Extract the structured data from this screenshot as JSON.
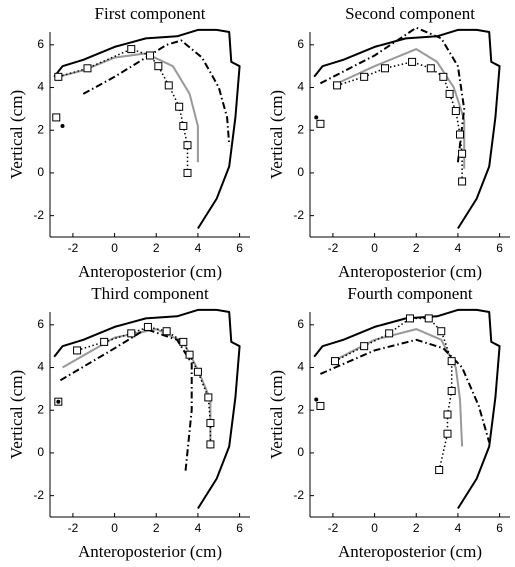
{
  "chart_data": [
    {
      "type": "line",
      "title": "First component",
      "xlabel": "Anteroposterior (cm)",
      "ylabel": "Vertical (cm)",
      "xlim": [
        -3.1,
        6.5
      ],
      "ylim": [
        -3,
        6.6
      ],
      "xticks": [
        -2,
        0,
        2,
        4,
        6
      ],
      "yticks": [
        -2,
        0,
        2,
        4,
        6
      ],
      "series": [
        {
          "color": "#000000",
          "line_style": "solid",
          "marker": "none",
          "x": [
            -2.9,
            -2.5,
            -1.5,
            0,
            1.5,
            3,
            4,
            4.9,
            5.5,
            5.6,
            6,
            5.8,
            5.5,
            4.9,
            4
          ],
          "y": [
            4.5,
            5.0,
            5.3,
            5.9,
            6.3,
            6.4,
            6.7,
            6.7,
            6.6,
            5.2,
            5.0,
            2.6,
            0.3,
            -1.2,
            -2.6
          ]
        },
        {
          "color": "#999999",
          "line_style": "solid",
          "marker": "none",
          "x": [
            -2.7,
            -1.5,
            0,
            1.5,
            2.8,
            3.6,
            4,
            4
          ],
          "y": [
            4.5,
            4.8,
            5.4,
            5.6,
            5.0,
            3.7,
            2.2,
            0.5
          ]
        },
        {
          "color": "#000000",
          "line_style": "dashdot",
          "marker": "none",
          "x": [
            -1.5,
            0,
            1.5,
            2.5,
            3.2,
            4.2,
            5,
            5.4,
            5.5
          ],
          "y": [
            3.7,
            4.5,
            5.4,
            6.0,
            6.2,
            5.4,
            4,
            2.6,
            1.3
          ]
        },
        {
          "color": "#000000",
          "line_style": "dotted",
          "marker": "square",
          "x": [
            -2.7,
            -1.3,
            0.8,
            1.7,
            2.1,
            2.6,
            3.1,
            3.3,
            3.5,
            3.5
          ],
          "y": [
            4.5,
            4.9,
            5.8,
            5.5,
            5.0,
            4.1,
            3.1,
            2.2,
            1.3,
            0.0
          ]
        },
        {
          "color": "#000000",
          "line_style": "none",
          "marker": "square",
          "x": [
            -2.8
          ],
          "y": [
            2.6
          ]
        },
        {
          "color": "#000000",
          "line_style": "none",
          "marker": "dot",
          "x": [
            -2.5
          ],
          "y": [
            2.2
          ]
        }
      ]
    },
    {
      "type": "line",
      "title": "Second component",
      "xlabel": "Anteroposterior (cm)",
      "ylabel": "Vertical (cm)",
      "xlim": [
        -3.1,
        6.5
      ],
      "ylim": [
        -3,
        6.6
      ],
      "xticks": [
        -2,
        0,
        2,
        4,
        6
      ],
      "yticks": [
        -2,
        0,
        2,
        4,
        6
      ],
      "series": [
        {
          "color": "#000000",
          "line_style": "solid",
          "marker": "none",
          "x": [
            -2.9,
            -2.5,
            -1.5,
            0,
            1.5,
            3,
            4,
            4.9,
            5.5,
            5.6,
            6,
            5.8,
            5.5,
            4.9,
            4
          ],
          "y": [
            4.5,
            5.0,
            5.3,
            5.9,
            6.3,
            6.4,
            6.7,
            6.7,
            6.6,
            5.2,
            5.0,
            2.6,
            0.3,
            -1.2,
            -2.6
          ]
        },
        {
          "color": "#999999",
          "line_style": "solid",
          "marker": "none",
          "x": [
            -2,
            0,
            2,
            3,
            3.8,
            4.3,
            4.3
          ],
          "y": [
            4.1,
            5,
            5.8,
            5.2,
            4,
            2.5,
            0.2
          ]
        },
        {
          "color": "#000000",
          "line_style": "dashdot",
          "marker": "none",
          "x": [
            -2.6,
            0,
            2,
            3.2,
            4,
            4.3,
            4
          ],
          "y": [
            4.2,
            5.5,
            6.8,
            6.3,
            5,
            3,
            0.5
          ]
        },
        {
          "color": "#000000",
          "line_style": "dotted",
          "marker": "square",
          "x": [
            -1.8,
            -0.5,
            0.5,
            1.8,
            2.7,
            3.3,
            3.6,
            3.9,
            4.1,
            4.2,
            4.2
          ],
          "y": [
            4.1,
            4.5,
            4.9,
            5.2,
            4.9,
            4.5,
            3.7,
            2.9,
            1.8,
            0.9,
            -0.4
          ]
        },
        {
          "color": "#000000",
          "line_style": "none",
          "marker": "square",
          "x": [
            -2.6
          ],
          "y": [
            2.3
          ]
        },
        {
          "color": "#000000",
          "line_style": "none",
          "marker": "dot",
          "x": [
            -2.8
          ],
          "y": [
            2.6
          ]
        }
      ]
    },
    {
      "type": "line",
      "title": "Third component",
      "xlabel": "Anteroposterior (cm)",
      "ylabel": "Vertical (cm)",
      "xlim": [
        -3.1,
        6.5
      ],
      "ylim": [
        -3,
        6.6
      ],
      "xticks": [
        -2,
        0,
        2,
        4,
        6
      ],
      "yticks": [
        -2,
        0,
        2,
        4,
        6
      ],
      "series": [
        {
          "color": "#000000",
          "line_style": "solid",
          "marker": "none",
          "x": [
            -2.9,
            -2.5,
            -1.5,
            0,
            1.5,
            3,
            4,
            4.9,
            5.5,
            5.6,
            6,
            5.8,
            5.5,
            4.9,
            4
          ],
          "y": [
            4.5,
            5.0,
            5.3,
            5.9,
            6.3,
            6.4,
            6.7,
            6.7,
            6.6,
            5.2,
            5.0,
            2.6,
            0.3,
            -1.2,
            -2.6
          ]
        },
        {
          "color": "#999999",
          "line_style": "solid",
          "marker": "none",
          "x": [
            -2.5,
            0,
            2,
            3.3,
            4,
            4.6,
            4.6
          ],
          "y": [
            4.0,
            5.4,
            5.8,
            5.2,
            3.9,
            2.5,
            0.2
          ]
        },
        {
          "color": "#000000",
          "line_style": "dashdot",
          "marker": "none",
          "x": [
            -2.6,
            0,
            1.5,
            3,
            3.7,
            3.7,
            3.4
          ],
          "y": [
            3.4,
            4.9,
            5.8,
            5.3,
            4.2,
            2,
            -0.9
          ]
        },
        {
          "color": "#000000",
          "line_style": "dotted",
          "marker": "square",
          "x": [
            -1.8,
            -0.5,
            0.8,
            1.6,
            2.5,
            3.3,
            3.6,
            4.0,
            4.5,
            4.6,
            4.6
          ],
          "y": [
            4.8,
            5.2,
            5.6,
            5.9,
            5.7,
            5.2,
            4.6,
            3.8,
            2.6,
            1.4,
            0.4
          ]
        },
        {
          "color": "#000000",
          "line_style": "none",
          "marker": "square",
          "x": [
            -2.7
          ],
          "y": [
            2.4
          ]
        },
        {
          "color": "#000000",
          "line_style": "none",
          "marker": "dot",
          "x": [
            -2.7
          ],
          "y": [
            2.4
          ]
        }
      ]
    },
    {
      "type": "line",
      "title": "Fourth component",
      "xlabel": "Anteroposterior (cm)",
      "ylabel": "Vertical (cm)",
      "xlim": [
        -3.1,
        6.5
      ],
      "ylim": [
        -3,
        6.6
      ],
      "xticks": [
        -2,
        0,
        2,
        4,
        6
      ],
      "yticks": [
        -2,
        0,
        2,
        4,
        6
      ],
      "series": [
        {
          "color": "#000000",
          "line_style": "solid",
          "marker": "none",
          "x": [
            -2.9,
            -2.5,
            -1.5,
            0,
            1.5,
            3,
            4,
            4.9,
            5.5,
            5.6,
            6,
            5.8,
            5.5,
            4.9,
            4
          ],
          "y": [
            4.5,
            5.0,
            5.3,
            5.9,
            6.3,
            6.4,
            6.7,
            6.7,
            6.6,
            5.2,
            5.0,
            2.6,
            0.3,
            -1.2,
            -2.6
          ]
        },
        {
          "color": "#999999",
          "line_style": "solid",
          "marker": "none",
          "x": [
            -2,
            0,
            2,
            3.2,
            3.9,
            4.1,
            4.2
          ],
          "y": [
            4.3,
            5.3,
            5.8,
            5.3,
            4,
            2.5,
            0.3
          ]
        },
        {
          "color": "#000000",
          "line_style": "dashdot",
          "marker": "none",
          "x": [
            -2.6,
            0,
            2,
            3.3,
            4.2,
            5,
            5.5
          ],
          "y": [
            3.7,
            4.8,
            5.3,
            4.9,
            4,
            2.2,
            0.5
          ]
        },
        {
          "color": "#000000",
          "line_style": "dotted",
          "marker": "square",
          "x": [
            -1.9,
            -0.5,
            0.7,
            1.7,
            2.6,
            3.2,
            3.7,
            3.7,
            3.5,
            3.5,
            3.1
          ],
          "y": [
            4.3,
            5.0,
            5.6,
            6.3,
            6.3,
            5.7,
            4.3,
            2.9,
            1.8,
            0.9,
            -0.8
          ]
        },
        {
          "color": "#000000",
          "line_style": "none",
          "marker": "square",
          "x": [
            -2.6
          ],
          "y": [
            2.2
          ]
        },
        {
          "color": "#000000",
          "line_style": "none",
          "marker": "dot",
          "x": [
            -2.8
          ],
          "y": [
            2.5
          ]
        }
      ]
    }
  ]
}
